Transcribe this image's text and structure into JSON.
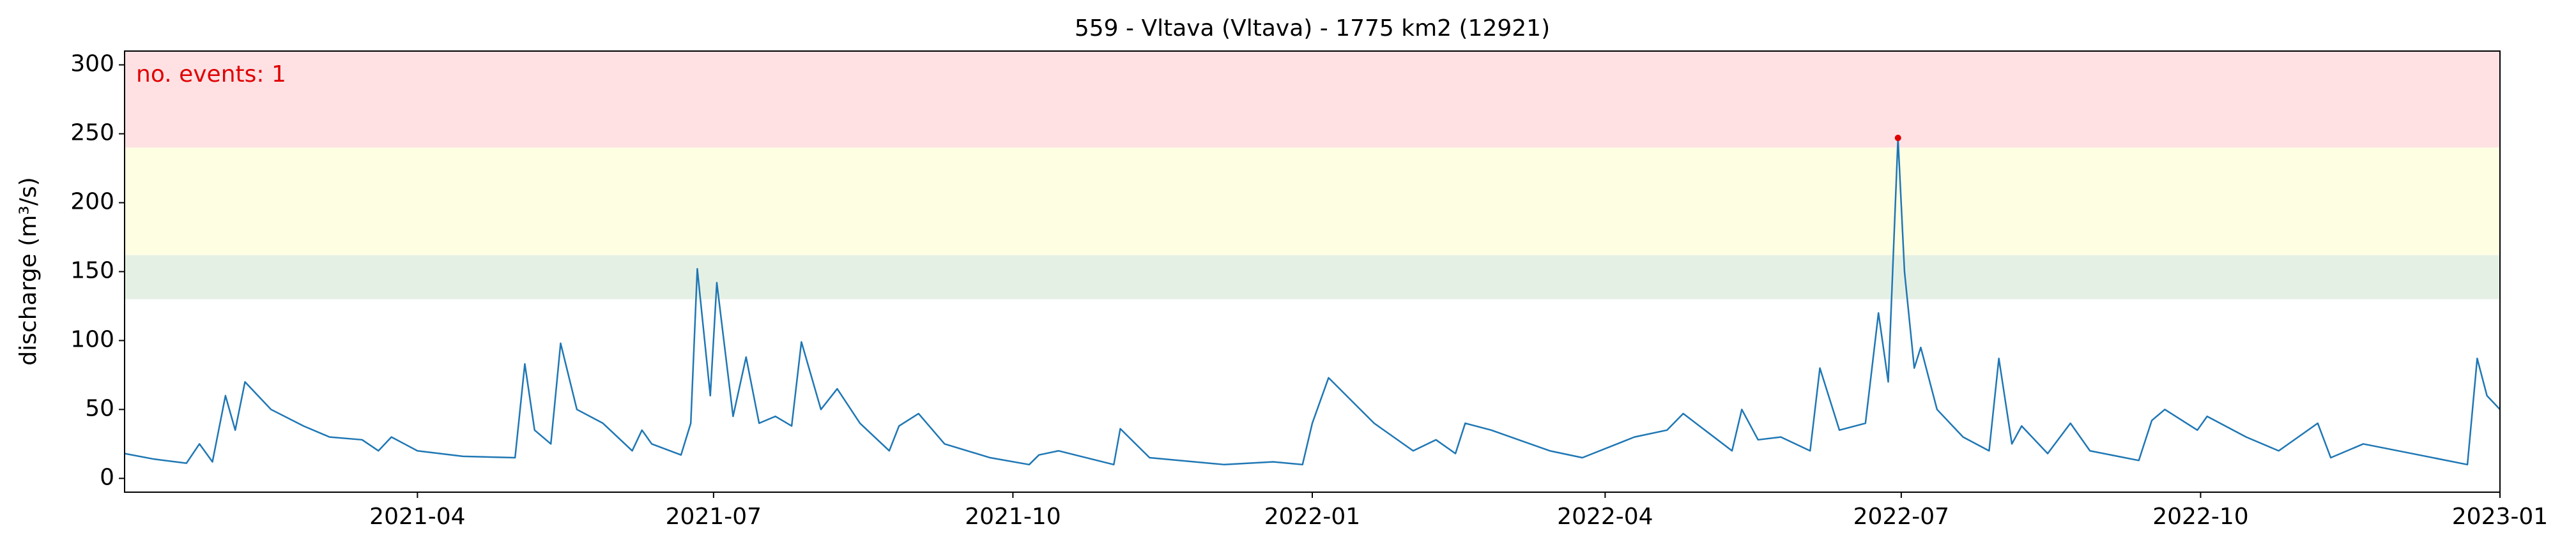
{
  "chart_data": {
    "type": "line",
    "title": "559 - Vltava (Vltava) - 1775 km2 (12921)",
    "ylabel": "discharge (m³/s)",
    "annotation": "no. events: 1",
    "annotation_color": "#e00000",
    "xlim": [
      "2021-01",
      "2023-01"
    ],
    "ylim": [
      -10,
      310
    ],
    "xticks": [
      "2021-04",
      "2021-07",
      "2021-10",
      "2022-01",
      "2022-04",
      "2022-07",
      "2022-10",
      "2023-01"
    ],
    "yticks": [
      0,
      50,
      100,
      150,
      200,
      250,
      300
    ],
    "bands": [
      {
        "from": 130,
        "to": 162,
        "color": "#e5f0e5"
      },
      {
        "from": 162,
        "to": 240,
        "color": "#fefee2"
      },
      {
        "from": 240,
        "to": 310,
        "color": "#ffe1e4"
      }
    ],
    "series": [
      {
        "color": "#1f77b4",
        "x": [
          "2021-01-01",
          "2021-01-10",
          "2021-01-20",
          "2021-01-24",
          "2021-01-28",
          "2021-02-01",
          "2021-02-04",
          "2021-02-07",
          "2021-02-15",
          "2021-02-25",
          "2021-03-05",
          "2021-03-15",
          "2021-03-20",
          "2021-03-24",
          "2021-04-01",
          "2021-04-15",
          "2021-05-01",
          "2021-05-04",
          "2021-05-07",
          "2021-05-12",
          "2021-05-15",
          "2021-05-20",
          "2021-05-28",
          "2021-06-06",
          "2021-06-09",
          "2021-06-12",
          "2021-06-21",
          "2021-06-24",
          "2021-06-26",
          "2021-06-30",
          "2021-07-02",
          "2021-07-07",
          "2021-07-11",
          "2021-07-15",
          "2021-07-20",
          "2021-07-25",
          "2021-07-28",
          "2021-08-03",
          "2021-08-08",
          "2021-08-15",
          "2021-08-24",
          "2021-08-27",
          "2021-09-02",
          "2021-09-10",
          "2021-09-24",
          "2021-10-06",
          "2021-10-09",
          "2021-10-15",
          "2021-11-01",
          "2021-11-03",
          "2021-11-12",
          "2021-12-05",
          "2021-12-20",
          "2021-12-29",
          "2022-01-01",
          "2022-01-06",
          "2022-01-20",
          "2022-02-01",
          "2022-02-08",
          "2022-02-14",
          "2022-02-17",
          "2022-02-25",
          "2022-03-15",
          "2022-03-25",
          "2022-04-10",
          "2022-04-20",
          "2022-04-25",
          "2022-05-10",
          "2022-05-13",
          "2022-05-18",
          "2022-05-25",
          "2022-06-03",
          "2022-06-06",
          "2022-06-12",
          "2022-06-20",
          "2022-06-24",
          "2022-06-27",
          "2022-06-30",
          "2022-07-02",
          "2022-07-05",
          "2022-07-07",
          "2022-07-12",
          "2022-07-20",
          "2022-07-28",
          "2022-07-31",
          "2022-08-04",
          "2022-08-07",
          "2022-08-15",
          "2022-08-22",
          "2022-08-28",
          "2022-09-12",
          "2022-09-16",
          "2022-09-20",
          "2022-09-30",
          "2022-10-03",
          "2022-10-15",
          "2022-10-25",
          "2022-11-06",
          "2022-11-10",
          "2022-11-20",
          "2022-12-05",
          "2022-12-22",
          "2022-12-25",
          "2022-12-28",
          "2023-01-01"
        ],
        "values": [
          18,
          14,
          11,
          25,
          12,
          60,
          35,
          70,
          50,
          38,
          30,
          28,
          20,
          30,
          20,
          16,
          15,
          83,
          35,
          25,
          98,
          50,
          40,
          20,
          35,
          25,
          17,
          40,
          152,
          60,
          142,
          45,
          88,
          40,
          45,
          38,
          99,
          50,
          65,
          40,
          20,
          38,
          47,
          25,
          15,
          10,
          17,
          20,
          10,
          36,
          15,
          10,
          12,
          10,
          40,
          73,
          40,
          20,
          28,
          18,
          40,
          35,
          20,
          15,
          30,
          35,
          47,
          20,
          50,
          28,
          30,
          20,
          80,
          35,
          40,
          120,
          70,
          247,
          150,
          80,
          95,
          50,
          30,
          20,
          87,
          25,
          38,
          18,
          40,
          20,
          13,
          42,
          50,
          35,
          45,
          30,
          20,
          40,
          15,
          25,
          18,
          10,
          87,
          60,
          50
        ]
      }
    ],
    "events": {
      "color": "#e00000",
      "x": [
        "2022-06-30"
      ],
      "values": [
        247
      ]
    }
  }
}
